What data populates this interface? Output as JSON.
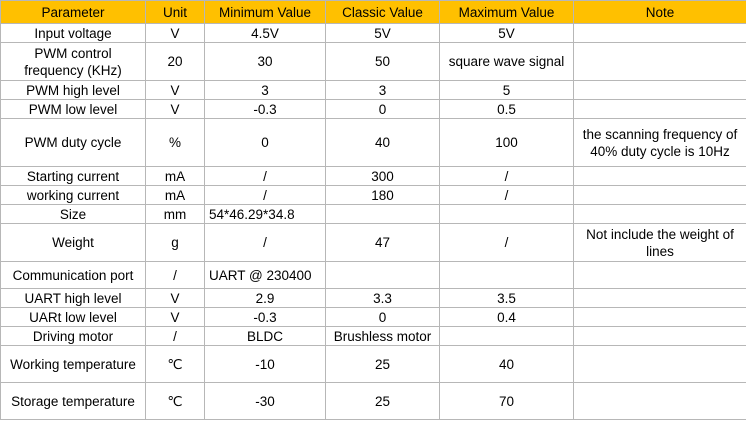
{
  "table": {
    "headers": [
      "Parameter",
      "Unit",
      "Minimum Value",
      "Classic Value",
      "Maximum Value",
      "Note"
    ],
    "rows": [
      {
        "parameter": "Input voltage",
        "unit": "V",
        "min": "4.5V",
        "classic": "5V",
        "max": "5V",
        "note": ""
      },
      {
        "parameter": "PWM control frequency (KHz)",
        "unit": "20",
        "min": "30",
        "classic": "50",
        "max": "square wave signal",
        "note": ""
      },
      {
        "parameter": "PWM high level",
        "unit": "V",
        "min": "3",
        "classic": "3",
        "max": "5",
        "note": ""
      },
      {
        "parameter": "PWM low level",
        "unit": "V",
        "min": "-0.3",
        "classic": "0",
        "max": "0.5",
        "note": ""
      },
      {
        "parameter": "PWM duty cycle",
        "unit": "%",
        "min": "0",
        "classic": "40",
        "max": "100",
        "note": "the scanning frequency of 40% duty cycle is 10Hz"
      },
      {
        "parameter": "Starting current",
        "unit": "mA",
        "min": "/",
        "classic": "300",
        "max": "/",
        "note": ""
      },
      {
        "parameter": "working current",
        "unit": "mA",
        "min": "/",
        "classic": "180",
        "max": "/",
        "note": ""
      },
      {
        "parameter": "Size",
        "unit": "mm",
        "min": "54*46.29*34.8",
        "classic": "",
        "max": "",
        "note": ""
      },
      {
        "parameter": "Weight",
        "unit": "g",
        "min": "/",
        "classic": "47",
        "max": "/",
        "note": "Not include the weight of lines"
      },
      {
        "parameter": "Communication port",
        "unit": "/",
        "min": "UART @ 230400",
        "classic": "",
        "max": "",
        "note": ""
      },
      {
        "parameter": "UART high level",
        "unit": "V",
        "min": "2.9",
        "classic": "3.3",
        "max": "3.5",
        "note": ""
      },
      {
        "parameter": "UARt low level",
        "unit": "V",
        "min": "-0.3",
        "classic": "0",
        "max": "0.4",
        "note": ""
      },
      {
        "parameter": "Driving motor",
        "unit": "/",
        "min": "BLDC",
        "classic": "Brushless motor",
        "max": "",
        "note": ""
      },
      {
        "parameter": "Working temperature",
        "unit": "℃",
        "min": "-10",
        "classic": "25",
        "max": "40",
        "note": ""
      },
      {
        "parameter": "Storage temperature",
        "unit": "℃",
        "min": "-30",
        "classic": "25",
        "max": "70",
        "note": ""
      }
    ]
  }
}
